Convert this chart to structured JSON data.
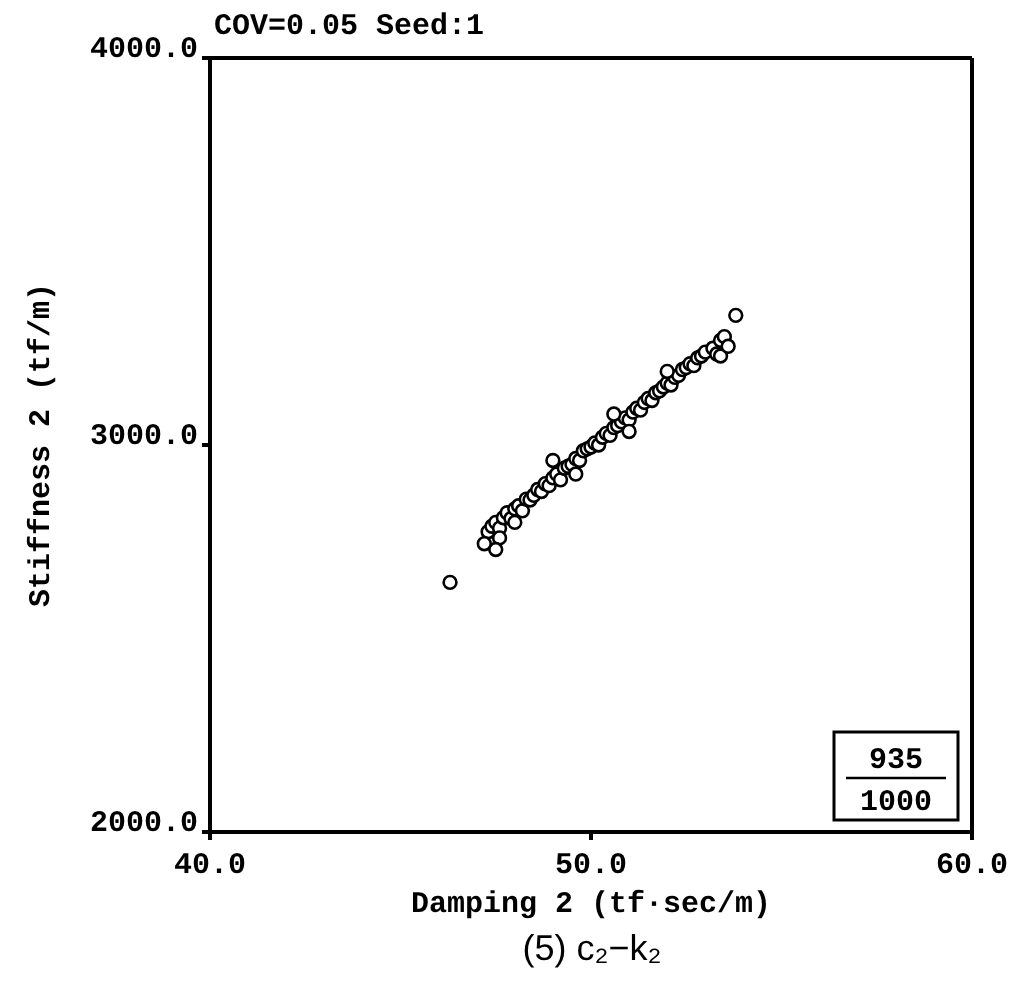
{
  "chart_data": {
    "type": "scatter",
    "title": "COV=0.05 Seed:1",
    "xlabel": "Damping 2 (tf·sec/m)",
    "ylabel": "Stiffness 2 (tf/m)",
    "annotations": [
      "935",
      "1000",
      "(5)  c₂−k₂"
    ],
    "xlim": [
      40,
      60
    ],
    "xticks": [
      {
        "value": 40,
        "label": "40.0"
      },
      {
        "value": 50,
        "label": "50.0"
      },
      {
        "value": 60,
        "label": "60.0"
      }
    ],
    "ylim": [
      2000,
      4000
    ],
    "yticks": [
      {
        "value": 2000,
        "label": "2000.0"
      },
      {
        "value": 3000,
        "label": "3000.0"
      },
      {
        "value": 4000,
        "label": "4000.0"
      }
    ],
    "legend": false,
    "marker": "circle",
    "series": [
      {
        "color": "#000000",
        "x": [
          47.3,
          47.4,
          47.5,
          47.6,
          47.7,
          47.8,
          47.9,
          48.0,
          48.1,
          48.2,
          48.3,
          48.4,
          48.5,
          48.6,
          48.7,
          48.8,
          48.9,
          49.0,
          49.1,
          49.2,
          49.3,
          49.4,
          49.5,
          49.6,
          49.7,
          49.8,
          49.9,
          50.0,
          50.1,
          50.2,
          50.3,
          50.4,
          50.5,
          50.6,
          50.7,
          50.8,
          50.9,
          51.0,
          51.1,
          51.2,
          51.3,
          51.4,
          51.5,
          51.6,
          51.7,
          51.8,
          51.9,
          52.0,
          52.1,
          52.2,
          52.3,
          52.4,
          52.5,
          52.6,
          52.7,
          52.8,
          52.9,
          53.0,
          53.2,
          53.3,
          53.4,
          53.5,
          47.2,
          47.6,
          49.0,
          49.6,
          50.6,
          51.0,
          52.0,
          53.4,
          53.6,
          46.3,
          53.8,
          47.5,
          48.0
        ],
        "values": [
          2776,
          2790,
          2800,
          2785,
          2812,
          2825,
          2810,
          2835,
          2843,
          2830,
          2860,
          2858,
          2870,
          2885,
          2880,
          2900,
          2895,
          2915,
          2925,
          2910,
          2940,
          2945,
          2950,
          2965,
          2960,
          2985,
          2990,
          2995,
          3005,
          3000,
          3020,
          3030,
          3025,
          3045,
          3050,
          3060,
          3070,
          3065,
          3085,
          3095,
          3090,
          3110,
          3120,
          3115,
          3135,
          3140,
          3150,
          3160,
          3155,
          3175,
          3180,
          3195,
          3200,
          3210,
          3205,
          3225,
          3230,
          3240,
          3250,
          3235,
          3270,
          3280,
          2745,
          2760,
          2960,
          2925,
          3080,
          3035,
          3190,
          3230,
          3255,
          2645,
          3335,
          2730,
          2800
        ]
      }
    ]
  }
}
